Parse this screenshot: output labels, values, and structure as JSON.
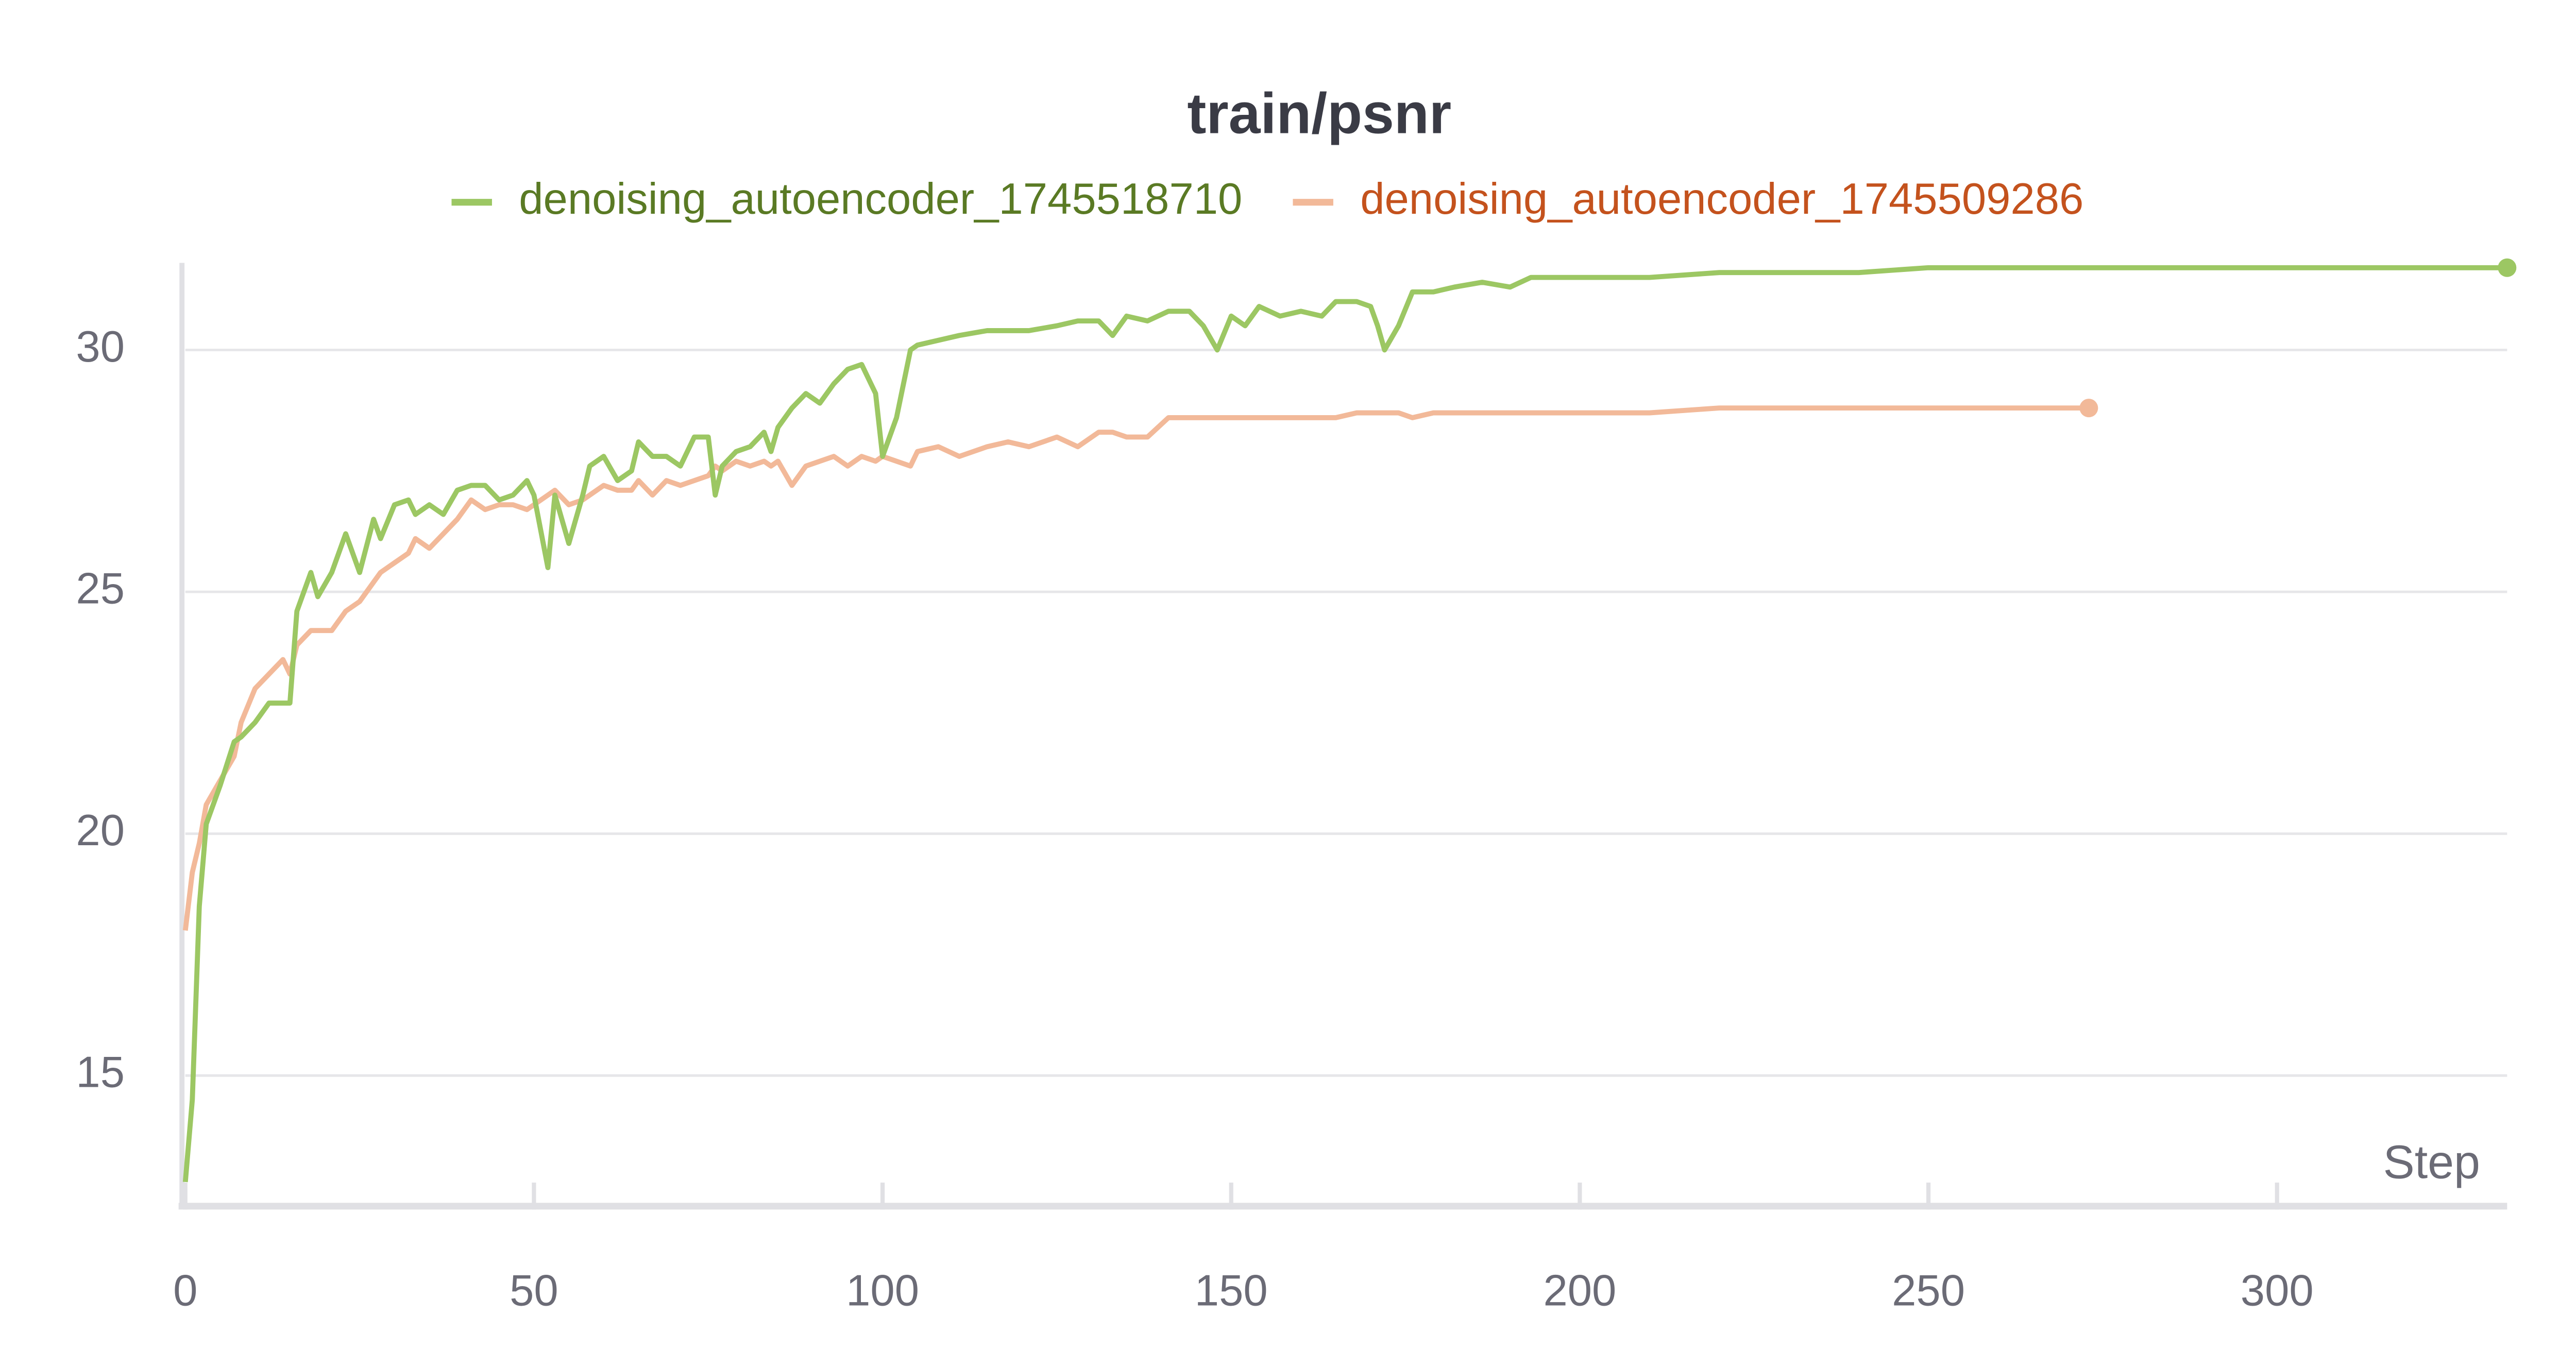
{
  "chart_data": {
    "type": "line",
    "title": "train/psnr",
    "x_label": "Step",
    "x": [
      0,
      1,
      2,
      3,
      5,
      7,
      8,
      10,
      12,
      14,
      15,
      16,
      18,
      19,
      21,
      23,
      25,
      27,
      28,
      30,
      32,
      33,
      35,
      37,
      39,
      41,
      43,
      45,
      47,
      49,
      50,
      52,
      53,
      55,
      57,
      58,
      60,
      62,
      64,
      65,
      67,
      69,
      71,
      73,
      75,
      76,
      77,
      79,
      81,
      83,
      84,
      85,
      87,
      89,
      91,
      93,
      95,
      97,
      99,
      100,
      102,
      104,
      105,
      108,
      111,
      115,
      118,
      121,
      125,
      128,
      131,
      133,
      135,
      138,
      141,
      144,
      146,
      148,
      150,
      152,
      154,
      157,
      160,
      163,
      165,
      168,
      170,
      171,
      172,
      174,
      176,
      179,
      182,
      186,
      190,
      193,
      200,
      210,
      220,
      230,
      240,
      250,
      270,
      273,
      290,
      310,
      333
    ],
    "series": [
      {
        "name": "denoising_autoencoder_1745518710",
        "color": "#9cc763",
        "legend_text_color": "#5a7a24",
        "values": [
          12.8,
          14.5,
          18.5,
          20.2,
          21,
          21.9,
          22,
          22.3,
          22.7,
          22.7,
          22.7,
          24.6,
          25.4,
          24.9,
          25.4,
          26.2,
          25.4,
          26.5,
          26.1,
          26.8,
          26.9,
          26.6,
          26.8,
          26.6,
          27.1,
          27.2,
          27.2,
          26.9,
          27,
          27.3,
          27,
          25.5,
          27,
          26,
          27,
          27.6,
          27.8,
          27.3,
          27.5,
          28.1,
          27.8,
          27.8,
          27.6,
          28.2,
          28.2,
          27,
          27.6,
          27.9,
          28,
          28.3,
          27.9,
          28.4,
          28.8,
          29.1,
          28.9,
          29.3,
          29.6,
          29.7,
          29.1,
          27.8,
          28.6,
          30,
          30.1,
          30.2,
          30.3,
          30.4,
          30.4,
          30.4,
          30.5,
          30.6,
          30.6,
          30.3,
          30.7,
          30.6,
          30.8,
          30.8,
          30.5,
          30,
          30.7,
          30.5,
          30.9,
          30.7,
          30.8,
          30.7,
          31,
          31,
          30.9,
          30.5,
          30,
          30.5,
          31.2,
          31.2,
          31.3,
          31.4,
          31.3,
          31.5,
          31.5,
          31.5,
          31.6,
          31.6,
          31.6,
          31.7,
          31.7,
          31.7,
          31.7,
          31.7,
          31.7
        ]
      },
      {
        "name": "denoising_autoencoder_1745509286",
        "color": "#f2b999",
        "legend_text_color": "#c4521d",
        "values": [
          18,
          19.2,
          19.8,
          20.6,
          21.1,
          21.6,
          22.3,
          23,
          23.3,
          23.6,
          23.3,
          23.9,
          24.2,
          24.2,
          24.2,
          24.6,
          24.8,
          25.2,
          25.4,
          25.6,
          25.8,
          26.1,
          25.9,
          26.2,
          26.5,
          26.9,
          26.7,
          26.8,
          26.8,
          26.7,
          26.8,
          27,
          27.1,
          26.8,
          26.9,
          27,
          27.2,
          27.1,
          27.1,
          27.3,
          27,
          27.3,
          27.2,
          27.3,
          27.4,
          27.6,
          27.5,
          27.7,
          27.6,
          27.7,
          27.6,
          27.7,
          27.2,
          27.6,
          27.7,
          27.8,
          27.6,
          27.8,
          27.7,
          27.8,
          27.7,
          27.6,
          27.9,
          28,
          27.8,
          28,
          28.1,
          28,
          28.2,
          28,
          28.3,
          28.3,
          28.2,
          28.2,
          28.6,
          28.6,
          28.6,
          28.6,
          28.6,
          28.6,
          28.6,
          28.6,
          28.6,
          28.6,
          28.6,
          28.7,
          28.7,
          28.7,
          28.7,
          28.7,
          28.6,
          28.7,
          28.7,
          28.7,
          28.7,
          28.7,
          28.7,
          28.7,
          28.8,
          28.8,
          28.8,
          28.8,
          28.8,
          28.8,
          null,
          null,
          null
        ]
      }
    ],
    "xlim": [
      0,
      333
    ],
    "ylim": [
      12.3,
      31.8
    ],
    "xticks": [
      0,
      50,
      100,
      150,
      200,
      250,
      300
    ],
    "yticks": [
      15,
      20,
      25,
      30
    ],
    "grid": true,
    "legend": "top"
  }
}
